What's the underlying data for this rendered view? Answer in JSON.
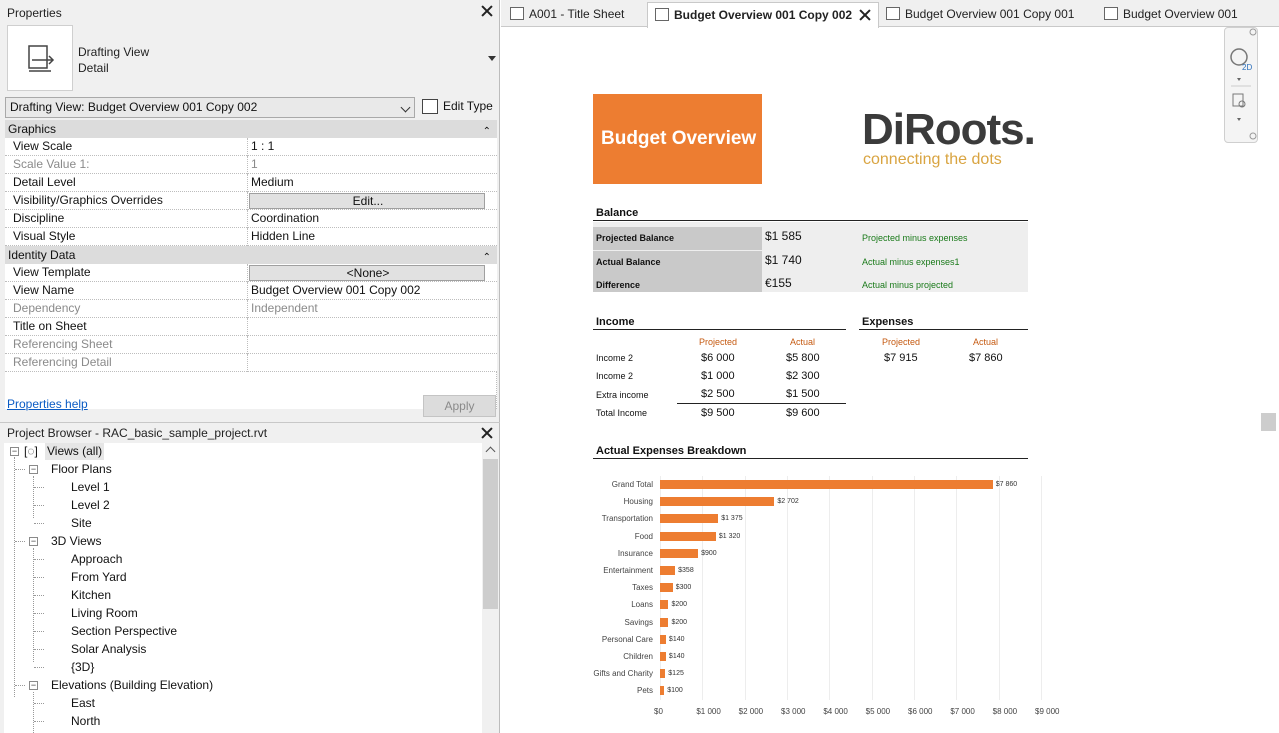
{
  "properties": {
    "title": "Properties",
    "type_name": "Drafting View",
    "type_sub": "Detail",
    "selector": "Drafting View: Budget Overview 001 Copy 002",
    "edit_type": "Edit Type",
    "groups": [
      {
        "label": "Graphics",
        "rows": [
          {
            "k": "View Scale",
            "v": "1 : 1"
          },
          {
            "k": "Scale Value    1:",
            "v": "1"
          },
          {
            "k": "Detail Level",
            "v": "Medium"
          },
          {
            "k": "Visibility/Graphics Overrides",
            "v": "Edit..."
          },
          {
            "k": "Discipline",
            "v": "Coordination"
          },
          {
            "k": "Visual Style",
            "v": "Hidden Line"
          }
        ]
      },
      {
        "label": "Identity Data",
        "rows": [
          {
            "k": "View Template",
            "v": "<None>"
          },
          {
            "k": "View Name",
            "v": "Budget Overview 001 Copy 002"
          },
          {
            "k": "Dependency",
            "v": "Independent"
          },
          {
            "k": "Title on Sheet",
            "v": ""
          },
          {
            "k": "Referencing Sheet",
            "v": ""
          },
          {
            "k": "Referencing Detail",
            "v": ""
          }
        ]
      }
    ],
    "help_link": "Properties help",
    "apply": "Apply"
  },
  "browser": {
    "title": "Project Browser - RAC_basic_sample_project.rvt",
    "root": "Views (all)",
    "floor_plans": "Floor Plans",
    "fp_items": [
      "Level 1",
      "Level 2",
      "Site"
    ],
    "views3d": "3D Views",
    "v3d_items": [
      "Approach",
      "From Yard",
      "Kitchen",
      "Living Room",
      "Section Perspective",
      "Solar Analysis",
      "{3D}"
    ],
    "elevations": "Elevations (Building Elevation)",
    "elev_items": [
      "East",
      "North"
    ]
  },
  "tabs": [
    "A001 - Title Sheet",
    "Budget Overview 001 Copy 002",
    "Budget Overview 001 Copy 001",
    "Budget Overview 001"
  ],
  "sheet": {
    "header": "Budget Overview",
    "logo": "DiRoots.",
    "tagline": "connecting the dots",
    "balance": {
      "title": "Balance",
      "rows": [
        {
          "label": "Projected Balance",
          "value": "$1 585",
          "note": "Projected minus expenses"
        },
        {
          "label": "Actual Balance",
          "value": "$1 740",
          "note": "Actual minus expenses1"
        },
        {
          "label": "Difference",
          "value": "€155",
          "note": "Actual minus projected"
        }
      ]
    },
    "income": {
      "title": "Income",
      "col_projected": "Projected",
      "col_actual": "Actual",
      "rows": [
        {
          "label": "Income 2",
          "projected": "$6 000",
          "actual": "$5 800"
        },
        {
          "label": "Income 2",
          "projected": "$1 000",
          "actual": "$2 300"
        },
        {
          "label": "Extra income",
          "projected": "$2 500",
          "actual": "$1 500"
        },
        {
          "label": "Total Income",
          "projected": "$9 500",
          "actual": "$9 600"
        }
      ]
    },
    "expenses": {
      "title": "Expenses",
      "col_projected": "Projected",
      "col_actual": "Actual",
      "projected": "$7 915",
      "actual": "$7 860"
    },
    "breakdown_title": "Actual Expenses Breakdown"
  },
  "chart_data": {
    "type": "bar",
    "orientation": "horizontal",
    "categories": [
      "Grand Total",
      "Housing",
      "Transportation",
      "Food",
      "Insurance",
      "Entertainment",
      "Taxes",
      "Loans",
      "Savings",
      "Personal Care",
      "Children",
      "Gifts and Charity",
      "Pets"
    ],
    "values": [
      7860,
      2702,
      1375,
      1320,
      900,
      358,
      300,
      200,
      200,
      140,
      140,
      125,
      100
    ],
    "labels": [
      "$7 860",
      "$2 702",
      "$1 375",
      "$1 320",
      "$900",
      "$358",
      "$300",
      "$200",
      "$200",
      "$140",
      "$140",
      "$125",
      "$100"
    ],
    "xticks": [
      "$0",
      "$1 000",
      "$2 000",
      "$3 000",
      "$4 000",
      "$5 000",
      "$6 000",
      "$7 000",
      "$8 000",
      "$9 000"
    ],
    "xlim": [
      0,
      9000
    ],
    "color": "#ed7d31"
  }
}
